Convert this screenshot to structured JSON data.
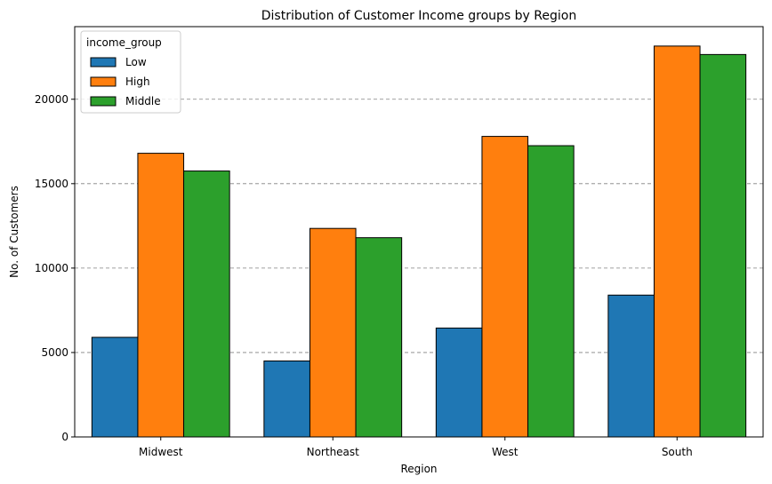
{
  "chart_data": {
    "type": "bar",
    "title": "Distribution of Customer Income groups by Region",
    "xlabel": "Region",
    "ylabel": "No. of Customers",
    "categories": [
      "Midwest",
      "Northeast",
      "West",
      "South"
    ],
    "series": [
      {
        "name": "Low",
        "color": "#1f77b4",
        "values": [
          5900,
          4500,
          6450,
          8400
        ]
      },
      {
        "name": "High",
        "color": "#ff7f0e",
        "values": [
          16800,
          12350,
          17800,
          23150
        ]
      },
      {
        "name": "Middle",
        "color": "#2ca02c",
        "values": [
          15750,
          11800,
          17250,
          22650
        ]
      }
    ],
    "ylim": [
      0,
      24300
    ],
    "yticks": [
      0,
      5000,
      10000,
      15000,
      20000
    ],
    "ytick_labels": [
      "0",
      "5000",
      "10000",
      "15000",
      "20000"
    ],
    "grid": {
      "axis": "y",
      "style": "dashed",
      "color": "#808080"
    },
    "legend": {
      "title": "income_group",
      "placement": "top-left"
    }
  }
}
